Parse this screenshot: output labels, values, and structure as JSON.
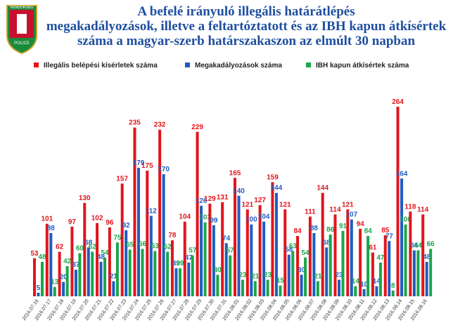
{
  "logo": {
    "top": "RENDŐRSÉG",
    "bottom": "POLICE"
  },
  "chart_data": {
    "type": "bar",
    "title": [
      "A befelé irányuló illegális határátlépés",
      "megakadályozások, illetve a feltartóztatott és az IBH kapun átkísértek",
      "száma a magyar-szerb határszakaszon az elmúlt 30 napban"
    ],
    "categories": [
      "2016.07.16",
      "2016.07.17",
      "2016.07.18",
      "2016.07.19",
      "2016.07.20",
      "2016.07.21",
      "2016.07.22",
      "2016.07.23",
      "2016.07.24",
      "2016.07.25",
      "2016.07.26",
      "2016.07.27",
      "2016.07.28",
      "2016.07.29",
      "2016.07.30",
      "2016.07.31",
      "2016.08.01",
      "2016.08.02",
      "2016.08.03",
      "2016.08.04",
      "2016.08.05",
      "2016.08.06",
      "2016.08.07",
      "2016.08.08",
      "2016.08.09",
      "2016.08.10",
      "2016.08.11",
      "2016.08.12",
      "2016.08.13",
      "2016.08.14",
      "2016.08.15",
      "2016.08.16"
    ],
    "series": [
      {
        "name": "Illegális belépési kísérletek száma",
        "color": "#e3141b",
        "values": [
          53,
          101,
          62,
          97,
          130,
          102,
          96,
          157,
          235,
          175,
          232,
          78,
          104,
          229,
          129,
          131,
          165,
          121,
          127,
          159,
          121,
          84,
          111,
          144,
          114,
          121,
          94,
          61,
          85,
          264,
          118,
          114
        ]
      },
      {
        "name": "Megakadályozások száma",
        "color": "#1f5cc0",
        "values": [
          5,
          88,
          20,
          37,
          68,
          48,
          21,
          92,
          179,
          112,
          170,
          39,
          47,
          126,
          99,
          74,
          140,
          100,
          104,
          144,
          58,
          30,
          88,
          68,
          23,
          107,
          10,
          14,
          77,
          164,
          64,
          48
        ]
      },
      {
        "name": "IBH kapun átkísértek száma",
        "color": "#1aa64a",
        "values": [
          48,
          13,
          42,
          60,
          62,
          54,
          75,
          65,
          66,
          63,
          62,
          39,
          57,
          103,
          30,
          57,
          23,
          21,
          23,
          15,
          63,
          54,
          21,
          86,
          91,
          14,
          84,
          47,
          8,
          100,
          64,
          66
        ]
      }
    ]
  }
}
